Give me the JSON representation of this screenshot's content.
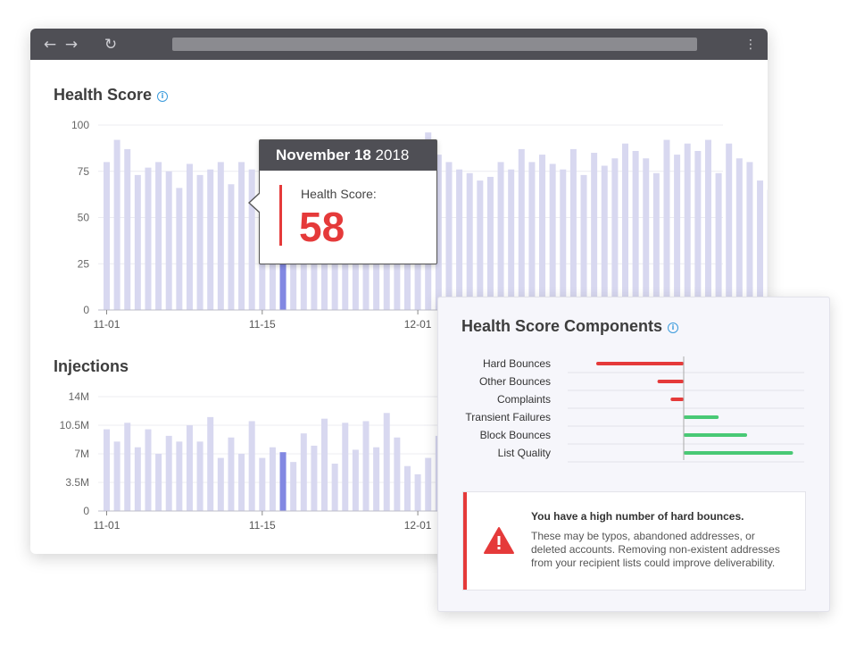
{
  "browser": {
    "back_icon": "arrow-left-icon",
    "forward_icon": "arrow-right-icon",
    "reload_icon": "reload-icon",
    "menu_icon": "vertical-dots-icon"
  },
  "health_score": {
    "title": "Health Score",
    "info_icon": "info-icon"
  },
  "injections": {
    "title": "Injections"
  },
  "tooltip": {
    "date_bold": "November 18",
    "year": "2018",
    "label": "Health Score:",
    "value": "58"
  },
  "components": {
    "title": "Health Score Components",
    "info_icon": "info-icon"
  },
  "alert": {
    "icon": "warning-icon",
    "title": "You have a high number of hard bounces.",
    "body": "These may be typos, abandoned addresses, or deleted accounts. Removing non-existent addresses from your recipient lists could improve deliverability."
  },
  "colors": {
    "bar": "#d8d8f0",
    "bar_highlight": "#8288e2",
    "negative": "#e53a3a",
    "positive": "#49c975",
    "browser_chrome": "#4f4f55"
  },
  "chart_data": [
    {
      "type": "bar",
      "title": "Health Score",
      "ylim": [
        0,
        100
      ],
      "yticks": [
        "0",
        "25",
        "50",
        "75",
        "100"
      ],
      "xtick_labels": [
        "11-01",
        "11-15",
        "12-01"
      ],
      "highlight_index": 17,
      "values": [
        80,
        92,
        87,
        73,
        77,
        80,
        75,
        66,
        79,
        73,
        76,
        80,
        68,
        80,
        76,
        72,
        78,
        58,
        92,
        88,
        85,
        82,
        78,
        80,
        83,
        79,
        85,
        76,
        74,
        81,
        78,
        96,
        84,
        80,
        76,
        74,
        70,
        72,
        80,
        76,
        87,
        80,
        84,
        79,
        76,
        87,
        73,
        85,
        78,
        82,
        90,
        86,
        82,
        74,
        92,
        84,
        90,
        86,
        92,
        74,
        90,
        82,
        80,
        70,
        65,
        60,
        55,
        58,
        62,
        72,
        76,
        80,
        87,
        82,
        74,
        86,
        82,
        97,
        90,
        73
      ]
    },
    {
      "type": "bar",
      "title": "Injections",
      "ylim": [
        0,
        14
      ],
      "yticks": [
        "0",
        "3.5M",
        "7M",
        "10.5M",
        "14M"
      ],
      "xtick_labels": [
        "11-01",
        "11-15",
        "12-01"
      ],
      "highlight_index": 17,
      "values": [
        10.0,
        8.5,
        10.8,
        7.8,
        10.0,
        7.0,
        9.2,
        8.5,
        10.5,
        8.5,
        11.5,
        6.5,
        9.0,
        7.0,
        11.0,
        6.5,
        7.8,
        7.2,
        6.0,
        9.5,
        8.0,
        11.3,
        5.8,
        10.8,
        7.5,
        11.0,
        7.8,
        12.0,
        9.0,
        5.5,
        4.5,
        6.5,
        9.2,
        8.5,
        6.0,
        7.8,
        9.8,
        11.0,
        10.0,
        6.5,
        12.0,
        7.5,
        9.0,
        6.0
      ]
    },
    {
      "type": "bar",
      "title": "Health Score Components",
      "orientation": "horizontal",
      "categories": [
        "Hard Bounces",
        "Other Bounces",
        "Complaints",
        "Transient Failures",
        "Block Bounces",
        "List Quality"
      ],
      "values": [
        -40,
        -12,
        -6,
        16,
        29,
        50
      ]
    }
  ]
}
